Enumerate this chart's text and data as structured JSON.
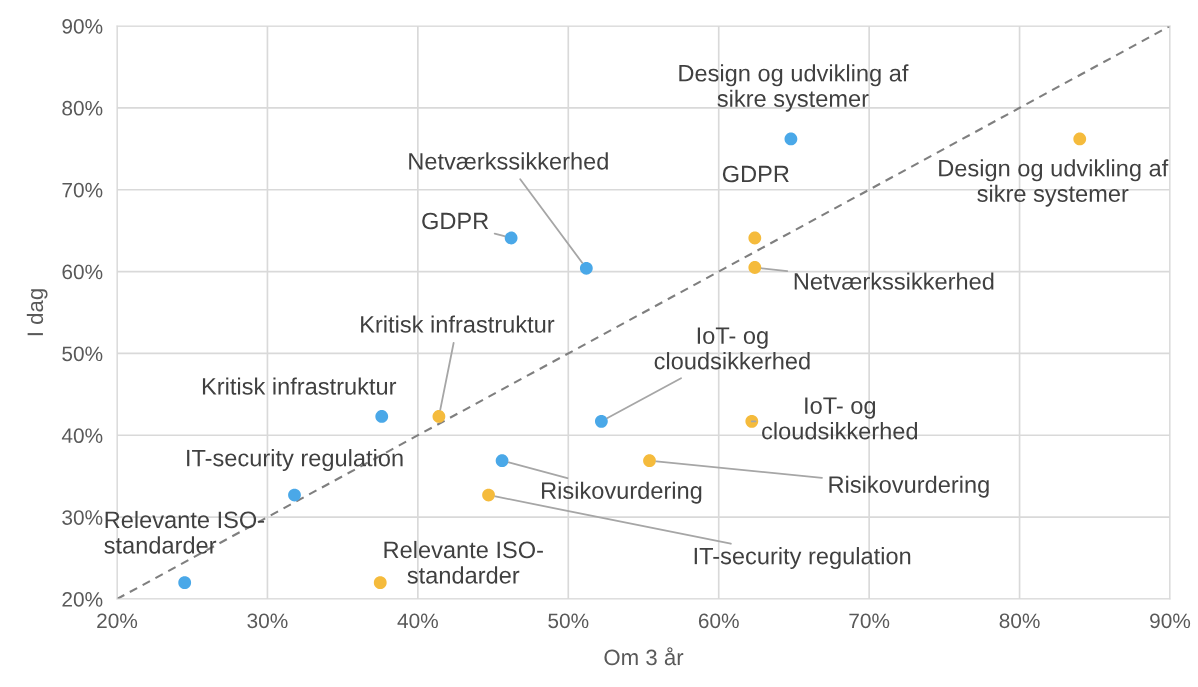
{
  "chart_data": {
    "type": "scatter",
    "xlabel": "Om 3 år",
    "ylabel": "I dag",
    "xlim": [
      20,
      90
    ],
    "ylim": [
      20,
      90
    ],
    "xticks": [
      {
        "value": 20,
        "label": "20%"
      },
      {
        "value": 30,
        "label": "30%"
      },
      {
        "value": 40,
        "label": "40%"
      },
      {
        "value": 50,
        "label": "50%"
      },
      {
        "value": 60,
        "label": "60%"
      },
      {
        "value": 70,
        "label": "70%"
      },
      {
        "value": 80,
        "label": "80%"
      },
      {
        "value": 90,
        "label": "90%"
      }
    ],
    "yticks": [
      {
        "value": 20,
        "label": "20%"
      },
      {
        "value": 30,
        "label": "30%"
      },
      {
        "value": 40,
        "label": "40%"
      },
      {
        "value": 50,
        "label": "50%"
      },
      {
        "value": 60,
        "label": "60%"
      },
      {
        "value": 70,
        "label": "70%"
      },
      {
        "value": 80,
        "label": "80%"
      },
      {
        "value": 90,
        "label": "90%"
      }
    ],
    "grid": true,
    "marker": "circle",
    "series": [
      {
        "type": "line",
        "color": "#7f7f7f",
        "line_style": "dashed",
        "marker": "none",
        "x": [
          20,
          90
        ],
        "values": [
          20,
          90
        ]
      },
      {
        "color": "#4aa8e8",
        "x": [
          24.5,
          31.8,
          37.6,
          45.6,
          46.2,
          51.2,
          52.2,
          64.8
        ],
        "values": [
          22.0,
          32.7,
          42.3,
          36.9,
          64.1,
          60.4,
          41.7,
          76.2
        ]
      },
      {
        "color": "#f5bb3c",
        "x": [
          37.5,
          44.7,
          41.4,
          55.4,
          62.4,
          62.4,
          62.2,
          84.0
        ],
        "values": [
          22.0,
          32.7,
          42.3,
          36.9,
          64.1,
          60.5,
          41.7,
          76.2
        ]
      }
    ],
    "annotations": [
      {
        "text": "Relevante ISO-\nstandarder",
        "x": 24.5,
        "y": 22.0
      },
      {
        "text": "IT-security regulation",
        "x": 31.8,
        "y": 32.7
      },
      {
        "text": "Kritisk infrastruktur",
        "x": 37.6,
        "y": 42.3
      },
      {
        "text": "Risikovurdering",
        "x": 45.6,
        "y": 36.9
      },
      {
        "text": "GDPR",
        "x": 46.2,
        "y": 64.1
      },
      {
        "text": "Netværkssikkerhed",
        "x": 51.2,
        "y": 60.4
      },
      {
        "text": "IoT- og\ncloudsikkerhed",
        "x": 52.2,
        "y": 41.7
      },
      {
        "text": "Design og udvikling af\nsikre systemer",
        "x": 64.8,
        "y": 76.2
      },
      {
        "text": "Relevante ISO-\nstandarder",
        "x": 37.5,
        "y": 22.0
      },
      {
        "text": "IT-security regulation",
        "x": 44.7,
        "y": 32.7
      },
      {
        "text": "Kritisk infrastruktur",
        "x": 41.4,
        "y": 42.3
      },
      {
        "text": "Risikovurdering",
        "x": 55.4,
        "y": 36.9
      },
      {
        "text": "GDPR",
        "x": 62.4,
        "y": 64.1
      },
      {
        "text": "Netværkssikkerhed",
        "x": 62.4,
        "y": 60.5
      },
      {
        "text": "IoT- og\ncloudsikkerhed",
        "x": 62.2,
        "y": 41.7
      },
      {
        "text": "Design og udvikling af\nsikre systemer",
        "x": 84.0,
        "y": 76.2
      }
    ]
  }
}
